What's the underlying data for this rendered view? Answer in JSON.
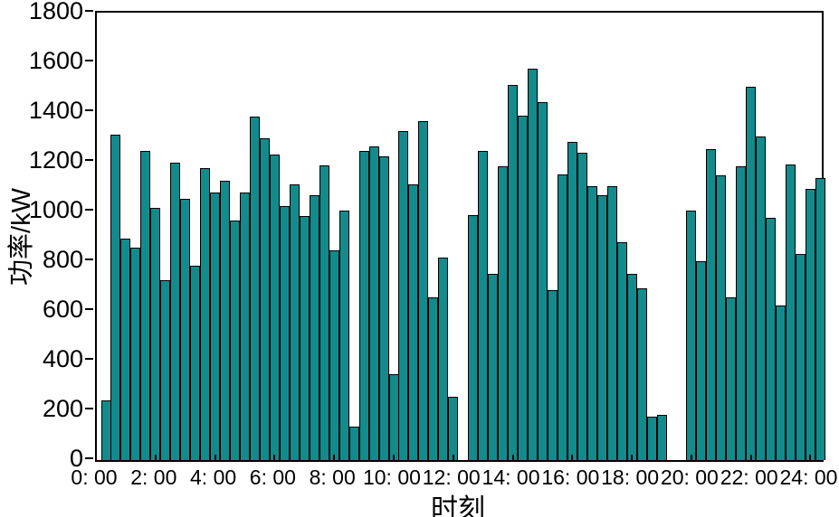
{
  "chart_data": {
    "type": "bar",
    "title": "",
    "xlabel": "时刻",
    "ylabel": "功率/kW",
    "ylim": [
      0,
      1800
    ],
    "ytick_step": 200,
    "ytick_labels": [
      "0",
      "200",
      "400",
      "600",
      "800",
      "1000",
      "1200",
      "1400",
      "1600",
      "1800"
    ],
    "xtick_hours": [
      0,
      2,
      4,
      6,
      8,
      10,
      12,
      14,
      16,
      18,
      20,
      22,
      24
    ],
    "xtick_labels": [
      "0: 00",
      "2: 00",
      "4: 00",
      "6: 00",
      "8: 00",
      "10: 00",
      "12: 00",
      "14: 00",
      "16: 00",
      "18: 00",
      "20: 00",
      "22: 00",
      "24: 00"
    ],
    "x_axis_max_hours": 24.35,
    "interval_minutes": 20,
    "first_point_minutes": 20,
    "grid": false,
    "legend": null,
    "bar_color": "#128b8d",
    "bar_edge_color": "#000000",
    "axis_color": "#000000",
    "values": [
      240,
      1310,
      890,
      855,
      1245,
      1015,
      725,
      1195,
      1050,
      780,
      1175,
      1075,
      1125,
      965,
      1075,
      1380,
      1295,
      1230,
      1020,
      1110,
      980,
      1065,
      1185,
      845,
      1005,
      135,
      1245,
      1260,
      1220,
      345,
      1325,
      1110,
      1365,
      655,
      815,
      255,
      0,
      985,
      1245,
      750,
      1180,
      1510,
      1385,
      1575,
      1440,
      685,
      1150,
      1280,
      1235,
      1100,
      1065,
      1100,
      875,
      750,
      690,
      175,
      180,
      0,
      0,
      1005,
      800,
      1250,
      1145,
      655,
      1180,
      1500,
      1300,
      975,
      620,
      1190,
      830,
      1090,
      1135
    ]
  }
}
